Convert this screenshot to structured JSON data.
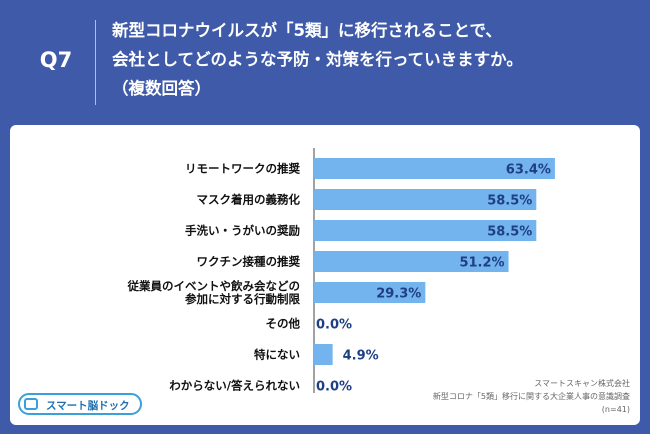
{
  "header": {
    "question_number": "Q7",
    "question_lines": [
      "新型コロナウイルスが「5類」に移行されることで、",
      "会社としてどのような予防・対策を行っていきますか。",
      "（複数回答）"
    ]
  },
  "logo_text": "スマート脳ドック",
  "source": {
    "company": "スマートスキャン株式会社",
    "survey": "新型コロナ「5類」移行に関する大企業人事の意識調査",
    "n": "(n=41)"
  },
  "colors": {
    "bar": "#73b3ee",
    "background": "#3f5aa8",
    "value_text": "#1f3f84"
  },
  "chart_data": {
    "type": "bar",
    "orientation": "horizontal",
    "categories": [
      [
        "リモートワークの推奨"
      ],
      [
        "マスク着用の義務化"
      ],
      [
        "手洗い・うがいの奨励"
      ],
      [
        "ワクチン接種の推奨"
      ],
      [
        "従業員のイベントや飲み会などの",
        "参加に対する行動制限"
      ],
      [
        "その他"
      ],
      [
        "特にない"
      ],
      [
        "わからない/答えられない"
      ]
    ],
    "values": [
      63.4,
      58.5,
      58.5,
      51.2,
      29.3,
      0.0,
      4.9,
      0.0
    ],
    "value_labels": [
      "63.4%",
      "58.5%",
      "58.5%",
      "51.2%",
      "29.3%",
      "0.0%",
      "4.9%",
      "0.0%"
    ],
    "xlim": [
      0,
      70
    ],
    "unit": "%"
  }
}
